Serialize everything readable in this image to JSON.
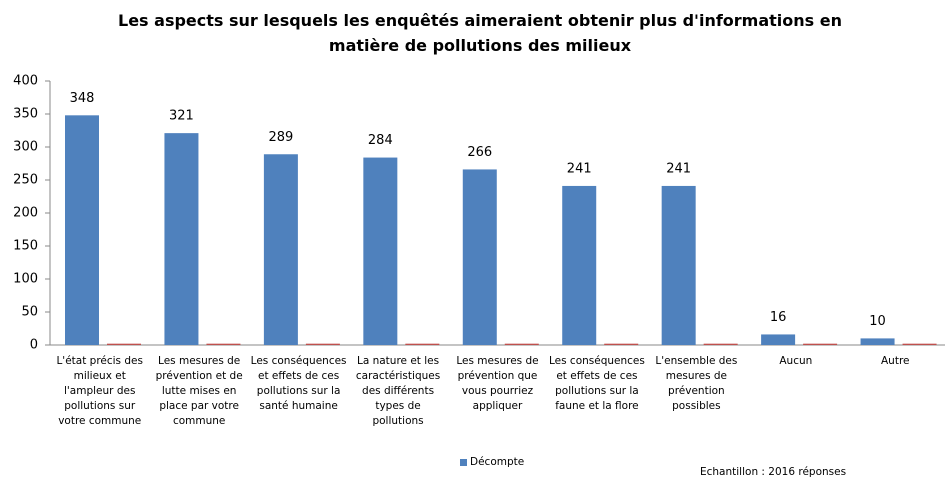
{
  "chart_data": {
    "type": "bar",
    "title": "Les aspects sur lesquels les enquêtés aimeraient obtenir plus d'informations en matière de pollutions des milieux",
    "categories": [
      "L'état précis des milieux et l'ampleur des pollutions sur votre commune",
      "Les mesures de prévention et de lutte mises en place par votre commune",
      "Les conséquences et effets de ces pollutions sur la santé humaine",
      "La nature et les caractéristiques des différents types de pollutions",
      "Les mesures de prévention que vous pourriez appliquer",
      "Les conséquences et effets de ces pollutions sur la faune et la flore",
      "L'ensemble des mesures de prévention possibles",
      "Aucun",
      "Autre"
    ],
    "series": [
      {
        "name": "Décompte",
        "color": "#4f81bd",
        "values": [
          348,
          321,
          289,
          284,
          266,
          241,
          241,
          16,
          10
        ]
      },
      {
        "color": "#c0504d",
        "values": [
          2,
          2,
          2,
          2,
          2,
          2,
          2,
          2,
          2
        ]
      }
    ],
    "ylim": [
      0,
      400
    ],
    "yticks": [
      0,
      50,
      100,
      150,
      200,
      250,
      300,
      350,
      400
    ],
    "grid": false,
    "legend": "bottom",
    "annotation": "Echantillon : 2016 réponses"
  }
}
